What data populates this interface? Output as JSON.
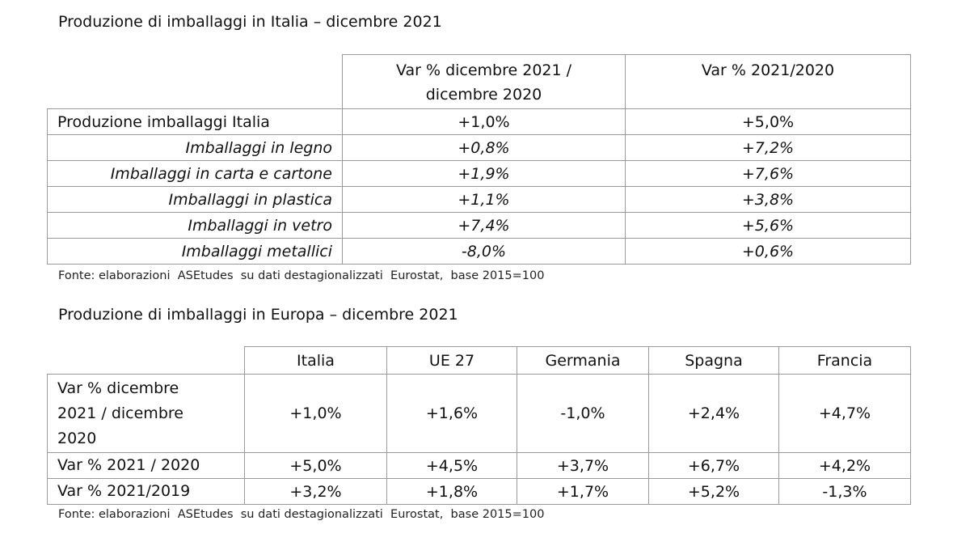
{
  "italy_table": {
    "title": "Produzione di imballaggi in Italia – dicembre 2021",
    "headers": [
      "",
      "Var % dicembre 2021 / dicembre 2020",
      "Var % 2021/2020"
    ],
    "rows": [
      {
        "label": "Produzione imballaggi Italia",
        "dec": "+1,0%",
        "year": "+5,0%"
      },
      {
        "label": "Imballaggi in legno",
        "dec": "+0,8%",
        "year": "+7,2%"
      },
      {
        "label": "Imballaggi in carta e cartone",
        "dec": "+1,9%",
        "year": "+7,6%"
      },
      {
        "label": "Imballaggi in plastica",
        "dec": "+1,1%",
        "year": "+3,8%"
      },
      {
        "label": "Imballaggi in vetro",
        "dec": "+7,4%",
        "year": "+5,6%"
      },
      {
        "label": "Imballaggi metallici",
        "dec": "-8,0%",
        "year": "+0,6%"
      }
    ],
    "source": "Fonte: elaborazioni  ASEtudes  su dati destagionalizzati  Eurostat,  base 2015=100"
  },
  "europe_table": {
    "title": "Produzione di imballaggi in Europa – dicembre 2021",
    "headers": [
      "",
      "Italia",
      "UE 27",
      "Germania",
      "Spagna",
      "Francia"
    ],
    "rows": [
      {
        "label": "Var % dicembre 2021 / dicembre 2020",
        "values": [
          "+1,0%",
          "+1,6%",
          "-1,0%",
          "+2,4%",
          "+4,7%"
        ]
      },
      {
        "label": "Var % 2021 / 2020",
        "values": [
          "+5,0%",
          "+4,5%",
          "+3,7%",
          "+6,7%",
          "+4,2%"
        ]
      },
      {
        "label": "Var % 2021/2019",
        "values": [
          "+3,2%",
          "+1,8%",
          "+1,7%",
          "+5,2%",
          "-1,3%"
        ]
      }
    ],
    "source": "Fonte: elaborazioni  ASEtudes  su dati destagionalizzati  Eurostat,  base 2015=100"
  }
}
